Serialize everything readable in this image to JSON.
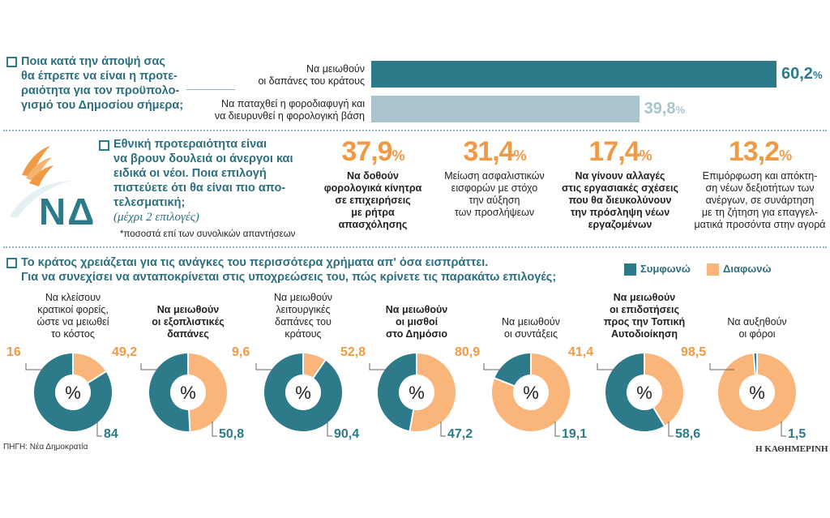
{
  "colors": {
    "agree": "#2c7a8a",
    "disagree": "#f9b57a",
    "bar1": "#2c7a8a",
    "bar2": "#a9c4cc",
    "accent_orange": "#f09a45",
    "text_blue": "#2c6f80"
  },
  "section1": {
    "question": [
      "Ποια κατά την άποψή σας",
      "θα έπρεπε να είναι η προτε-",
      "ραιότητα για τον προϋπολο-",
      "γισμό του Δημοσίου σήμερα;"
    ],
    "bars": [
      {
        "label": [
          "Να μειωθούν",
          "οι δαπάνες του κράτους"
        ],
        "display": "60,2",
        "unit": "%"
      },
      {
        "label": [
          "Να παταχθεί η φοροδιαφυγή και",
          "να διευρυνθεί η φορολογική βάση"
        ],
        "display": "39,8",
        "unit": "%"
      }
    ]
  },
  "section2": {
    "logo_text": "ΝΔ",
    "question": [
      "Εθνική προτεραιότητα είναι",
      "να βρουν δουλειά οι άνεργοι και",
      "ειδικά οι νέοι. Ποια επιλογή",
      "πιστεύετε ότι θα είναι πιο απο-",
      "τελεσματική;"
    ],
    "question_note": "(μέχρι 2 επιλογές)",
    "footnote": "*ποσοστά επί των συνολικών απαντήσεων",
    "stats": [
      {
        "value": "37,9",
        "unit": "%",
        "bold": true,
        "desc": [
          "Να δοθούν",
          "φορολογικά κίνητρα",
          "σε επιχειρήσεις",
          "με ρήτρα",
          "απασχόλησης"
        ]
      },
      {
        "value": "31,4",
        "unit": "%",
        "bold": false,
        "desc": [
          "Μείωση ασφαλιστικών",
          "εισφορών με στόχο",
          "την αύξηση",
          "των προσλήψεων"
        ]
      },
      {
        "value": "17,4",
        "unit": "%",
        "bold": true,
        "desc": [
          "Να γίνουν αλλαγές",
          "στις εργασιακές σχέσεις",
          "που θα διευκολύνουν",
          "την πρόσληψη νέων",
          "εργαζομένων"
        ]
      },
      {
        "value": "13,2",
        "unit": "%",
        "bold": false,
        "desc": [
          "Επιμόρφωση και απόκτη-",
          "ση νέων δεξιοτήτων των",
          "ανέργων, σε συνάρτηση",
          "με τη ζήτηση για επαγγελ-",
          "ματικά προσόντα στην αγορά"
        ]
      }
    ]
  },
  "section3": {
    "question": [
      "Το κράτος χρειάζεται για τις ανάγκες του περισσότερα χρήματα απ' όσα εισπράττει.",
      "Για να συνεχίσει να ανταποκρίνεται στις υποχρεώσεις του, πώς κρίνετε τις παρακάτω επιλογές;"
    ],
    "legend": {
      "agree": "Συμφωνώ",
      "disagree": "Διαφωνώ"
    },
    "center_symbol": "%",
    "source": "ΠΗΓΗ: Νέα Δημοκρατία",
    "publisher": "Η ΚΑΘΗΜΕΡΙΝΗ"
  },
  "chart_data": [
    {
      "type": "bar",
      "categories": [
        "Να μειωθούν οι δαπάνες του κράτους",
        "Να παταχθεί η φοροδιαφυγή και να διευρυνθεί η φορολογική βάση"
      ],
      "values": [
        60.2,
        39.8
      ]
    },
    {
      "type": "bar",
      "categories": [
        "Να δοθούν φορολογικά κίνητρα σε επιχειρήσεις με ρήτρα απασχόλησης",
        "Μείωση ασφαλιστικών εισφορών με στόχο την αύξηση των προσλήψεων",
        "Να γίνουν αλλαγές στις εργασιακές σχέσεις που θα διευκολύνουν την πρόσληψη νέων εργαζομένων",
        "Επιμόρφωση και απόκτηση νέων δεξιοτήτων των ανέργων, σε συνάρτηση με τη ζήτηση για επαγγελματικά προσόντα στην αγορά"
      ],
      "values": [
        37.9,
        31.4,
        17.4,
        13.2
      ]
    },
    {
      "type": "pie",
      "series_names": [
        "Συμφωνώ",
        "Διαφωνώ"
      ],
      "donuts": [
        {
          "title": [
            "Να κλείσουν",
            "κρατικοί φορείς,",
            "ώστε να μειωθεί",
            "το κόστος"
          ],
          "bold": false,
          "agree": 84,
          "disagree": 16,
          "agree_label": "84",
          "disagree_label": "16"
        },
        {
          "title": [
            "Να μειωθούν",
            "οι εξοπλιστικές",
            "δαπάνες"
          ],
          "bold": true,
          "agree": 50.8,
          "disagree": 49.2,
          "agree_label": "50,8",
          "disagree_label": "49,2"
        },
        {
          "title": [
            "Να μειωθούν",
            "λειτουργικές",
            "δαπάνες του",
            "κράτους"
          ],
          "bold": false,
          "agree": 90.4,
          "disagree": 9.6,
          "agree_label": "90,4",
          "disagree_label": "9,6"
        },
        {
          "title": [
            "Να μειωθούν",
            "οι μισθοί",
            "στο Δημόσιο"
          ],
          "bold": true,
          "agree": 47.2,
          "disagree": 52.8,
          "agree_label": "47,2",
          "disagree_label": "52,8"
        },
        {
          "title": [
            "Να μειωθούν",
            "οι συντάξεις"
          ],
          "bold": false,
          "agree": 19.1,
          "disagree": 80.9,
          "agree_label": "19,1",
          "disagree_label": "80,9"
        },
        {
          "title": [
            "Να μειωθούν",
            "οι επιδοτήσεις",
            "προς την Τοπική",
            "Αυτοδιοίκηση"
          ],
          "bold": true,
          "agree": 58.6,
          "disagree": 41.4,
          "agree_label": "58,6",
          "disagree_label": "41,4"
        },
        {
          "title": [
            "Να αυξηθούν",
            "οι φόροι"
          ],
          "bold": false,
          "agree": 1.5,
          "disagree": 98.5,
          "agree_label": "1,5",
          "disagree_label": "98,5"
        }
      ]
    }
  ]
}
